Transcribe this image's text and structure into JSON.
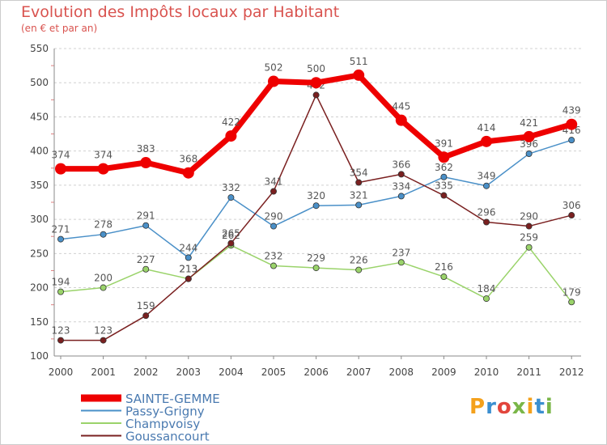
{
  "header": {
    "title": "Evolution des Impôts locaux par Habitant",
    "subtitle": "(en € et par an)"
  },
  "brand": {
    "text": "Proxiti"
  },
  "chart_data": {
    "type": "line",
    "title": "Evolution des Impôts locaux par Habitant",
    "subtitle": "(en € et par an)",
    "xlabel": "",
    "ylabel": "",
    "ylim": [
      100,
      550
    ],
    "yticks": [
      100,
      150,
      200,
      250,
      300,
      350,
      400,
      450,
      500,
      550
    ],
    "grid": "dashed horizontal",
    "legend_position": "bottom-left",
    "categories": [
      "2000",
      "2001",
      "2002",
      "2003",
      "2004",
      "2005",
      "2006",
      "2007",
      "2008",
      "2009",
      "2010",
      "2011",
      "2012"
    ],
    "series": [
      {
        "name": "SAINTE-GEMME",
        "color": "#ee0000",
        "emphasis": "thick",
        "values": [
          374,
          374,
          383,
          368,
          422,
          502,
          500,
          511,
          445,
          391,
          414,
          421,
          439
        ]
      },
      {
        "name": "Passy-Grigny",
        "color": "#4a90c8",
        "values": [
          271,
          278,
          291,
          244,
          332,
          290,
          320,
          321,
          334,
          362,
          349,
          396,
          416
        ]
      },
      {
        "name": "Champvoisy",
        "color": "#9ad36a",
        "values": [
          194,
          200,
          227,
          213,
          262,
          232,
          229,
          226,
          237,
          216,
          184,
          259,
          179
        ]
      },
      {
        "name": "Goussancourt",
        "color": "#7a2020",
        "values": [
          123,
          123,
          159,
          213,
          265,
          341,
          482,
          354,
          366,
          335,
          296,
          290,
          306
        ]
      }
    ]
  }
}
